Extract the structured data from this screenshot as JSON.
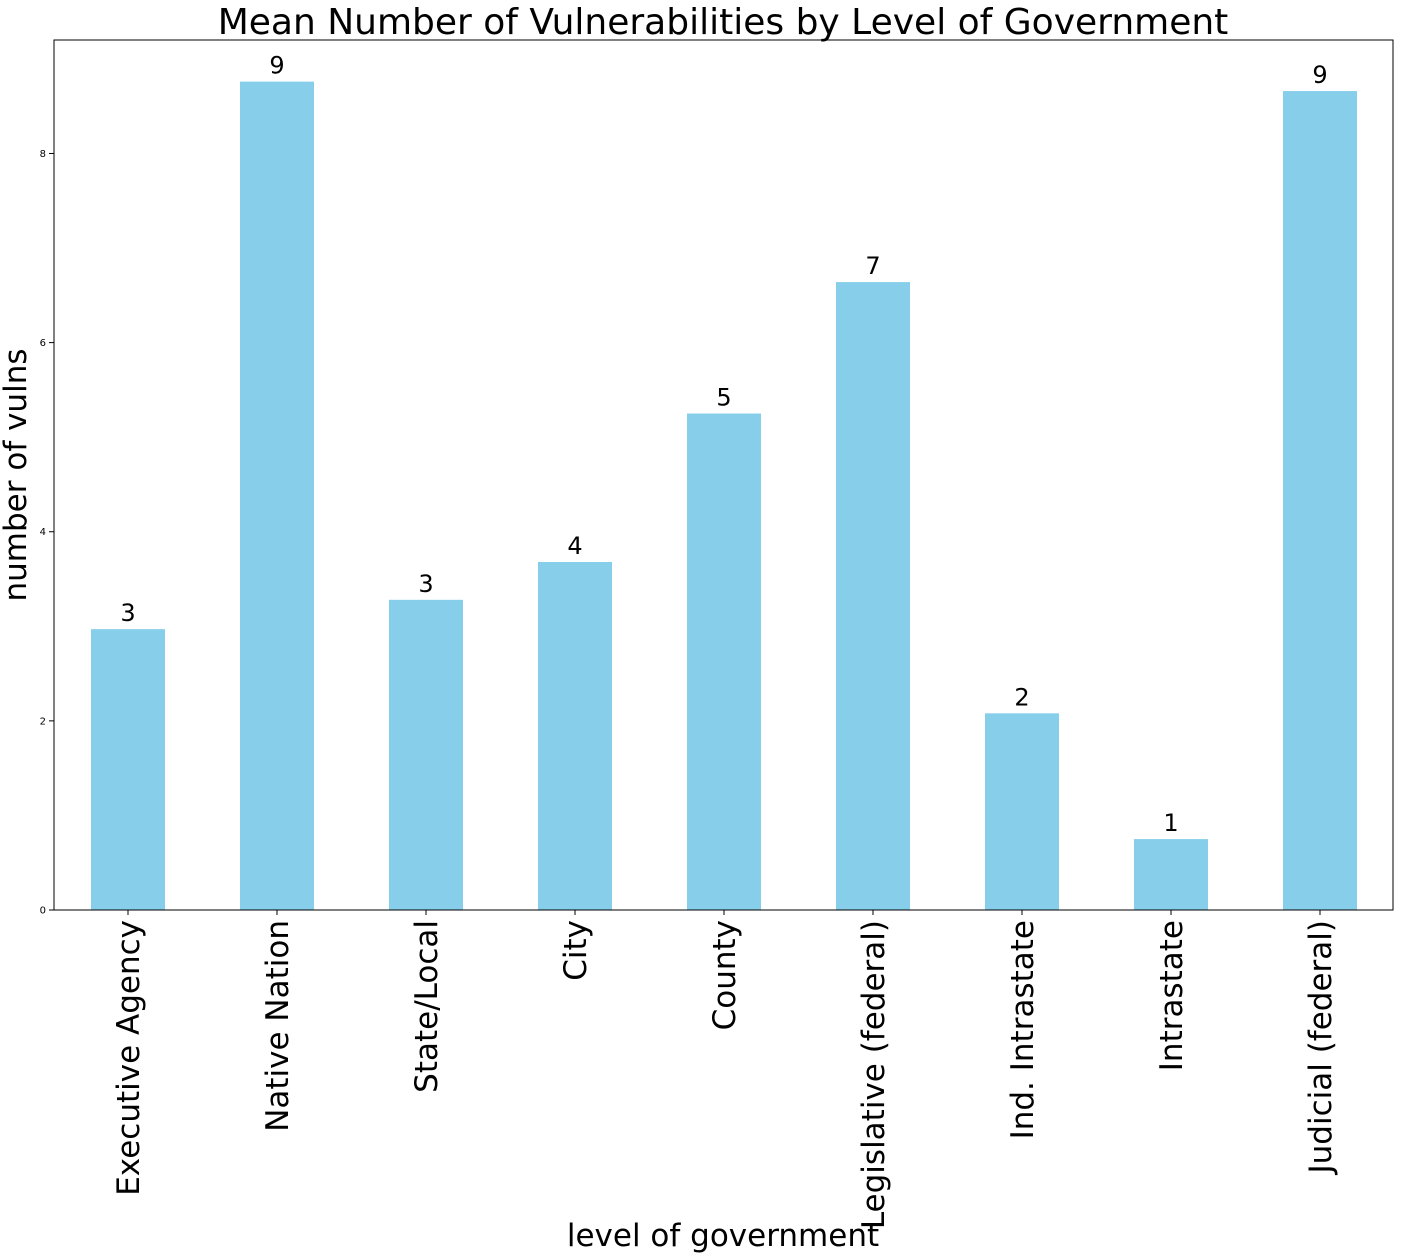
{
  "chart_data": {
    "type": "bar",
    "title": "Mean Number of Vulnerabilities by Level of Government",
    "xlabel": "level of government",
    "ylabel": "number of vulns",
    "categories": [
      "Executive Agency",
      "Native Nation",
      "State/Local",
      "City",
      "County",
      "Legislative (federal)",
      "Ind. Intrastate",
      "Intrastate",
      "Judicial (federal)"
    ],
    "values": [
      2.97,
      8.76,
      3.28,
      3.68,
      5.25,
      6.64,
      2.08,
      0.75,
      8.66
    ],
    "data_labels": [
      "3",
      "9",
      "3",
      "4",
      "5",
      "7",
      "2",
      "1",
      "9"
    ],
    "ylim": [
      0,
      9.2
    ],
    "yticks": [
      0,
      2,
      4,
      6,
      8
    ],
    "grid": false,
    "legend": "none",
    "bar_color": "#87ceeb"
  }
}
